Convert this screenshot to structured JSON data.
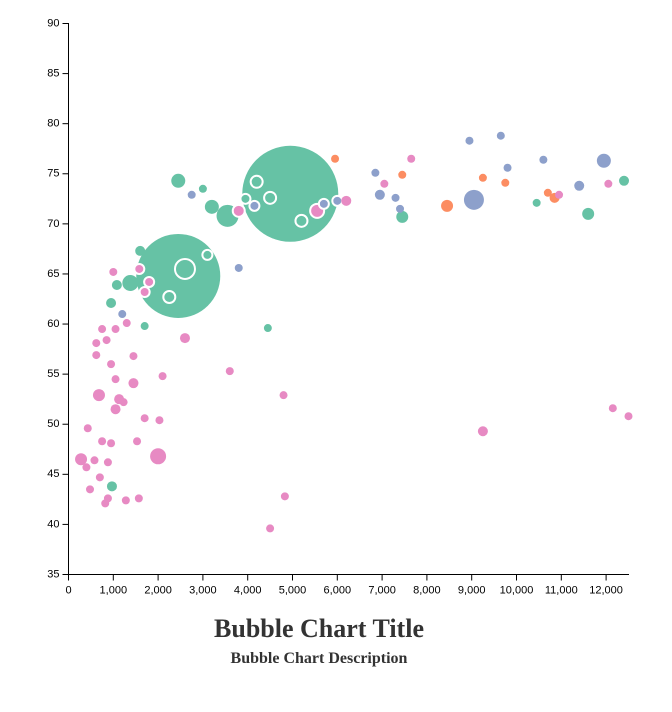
{
  "chart_data": {
    "type": "scatter",
    "title": "Bubble Chart Title",
    "subtitle": "Bubble Chart Description",
    "xlabel": "",
    "ylabel": "",
    "xlim": [
      0,
      12500
    ],
    "ylim": [
      35,
      90
    ],
    "x_ticks": [
      0,
      1000,
      2000,
      3000,
      4000,
      5000,
      6000,
      7000,
      8000,
      9000,
      10000,
      11000,
      12000
    ],
    "x_tick_labels": [
      "0",
      "1,000",
      "2,000",
      "3,000",
      "4,000",
      "5,000",
      "6,000",
      "7,000",
      "8,000",
      "9,000",
      "10,000",
      "11,000",
      "12,000"
    ],
    "y_ticks": [
      35,
      40,
      45,
      50,
      55,
      60,
      65,
      70,
      75,
      80,
      85,
      90
    ],
    "y_tick_labels": [
      "35",
      "40",
      "45",
      "50",
      "55",
      "60",
      "65",
      "70",
      "75",
      "80",
      "85",
      "90"
    ],
    "grid": false,
    "legend": "none",
    "colors": {
      "green": "#66c2a5",
      "orange": "#fc8d62",
      "blue": "#8da0cb",
      "pink": "#e78ac3"
    },
    "points": [
      {
        "x": 4950,
        "y": 73.0,
        "r": 48,
        "color": "green",
        "outline": false
      },
      {
        "x": 2450,
        "y": 64.8,
        "r": 42,
        "color": "green",
        "outline": false
      },
      {
        "x": 2600,
        "y": 65.5,
        "r": 10,
        "color": "green",
        "outline": true
      },
      {
        "x": 2250,
        "y": 62.7,
        "r": 6,
        "color": "green",
        "outline": true
      },
      {
        "x": 3100,
        "y": 66.9,
        "r": 5,
        "color": "green",
        "outline": true
      },
      {
        "x": 4200,
        "y": 74.2,
        "r": 6,
        "color": "green",
        "outline": true
      },
      {
        "x": 4500,
        "y": 72.6,
        "r": 6,
        "color": "green",
        "outline": true
      },
      {
        "x": 4150,
        "y": 71.8,
        "r": 5,
        "color": "blue",
        "outline": true
      },
      {
        "x": 3950,
        "y": 72.5,
        "r": 5,
        "color": "green",
        "outline": true
      },
      {
        "x": 5200,
        "y": 70.3,
        "r": 6,
        "color": "green",
        "outline": true
      },
      {
        "x": 5700,
        "y": 72.0,
        "r": 5,
        "color": "blue",
        "outline": true
      },
      {
        "x": 6000,
        "y": 72.3,
        "r": 5,
        "color": "blue",
        "outline": true
      },
      {
        "x": 5550,
        "y": 71.3,
        "r": 7,
        "color": "pink",
        "outline": true
      },
      {
        "x": 3800,
        "y": 71.3,
        "r": 6,
        "color": "pink",
        "outline": true
      },
      {
        "x": 1580,
        "y": 65.5,
        "r": 5,
        "color": "pink",
        "outline": true
      },
      {
        "x": 1800,
        "y": 64.2,
        "r": 5,
        "color": "pink",
        "outline": true
      },
      {
        "x": 1700,
        "y": 63.2,
        "r": 5,
        "color": "pink",
        "outline": true
      },
      {
        "x": 2450,
        "y": 74.3,
        "r": 7,
        "color": "green",
        "outline": false
      },
      {
        "x": 3000,
        "y": 73.5,
        "r": 4,
        "color": "green",
        "outline": false
      },
      {
        "x": 3200,
        "y": 71.7,
        "r": 7,
        "color": "green",
        "outline": false
      },
      {
        "x": 3550,
        "y": 70.8,
        "r": 11,
        "color": "green",
        "outline": false
      },
      {
        "x": 2750,
        "y": 72.9,
        "r": 4,
        "color": "blue",
        "outline": false
      },
      {
        "x": 6200,
        "y": 72.3,
        "r": 5,
        "color": "pink",
        "outline": false
      },
      {
        "x": 5950,
        "y": 76.5,
        "r": 4,
        "color": "orange",
        "outline": false
      },
      {
        "x": 6850,
        "y": 75.1,
        "r": 4,
        "color": "blue",
        "outline": false
      },
      {
        "x": 6950,
        "y": 72.9,
        "r": 5,
        "color": "blue",
        "outline": false
      },
      {
        "x": 7050,
        "y": 74.0,
        "r": 4,
        "color": "pink",
        "outline": false
      },
      {
        "x": 7300,
        "y": 72.6,
        "r": 4,
        "color": "blue",
        "outline": false
      },
      {
        "x": 7400,
        "y": 71.5,
        "r": 4,
        "color": "blue",
        "outline": false
      },
      {
        "x": 7450,
        "y": 70.7,
        "r": 6,
        "color": "green",
        "outline": false
      },
      {
        "x": 7450,
        "y": 74.9,
        "r": 4,
        "color": "orange",
        "outline": false
      },
      {
        "x": 7650,
        "y": 76.5,
        "r": 4,
        "color": "pink",
        "outline": false
      },
      {
        "x": 8450,
        "y": 71.8,
        "r": 6,
        "color": "orange",
        "outline": false
      },
      {
        "x": 8950,
        "y": 78.3,
        "r": 4,
        "color": "blue",
        "outline": false
      },
      {
        "x": 9050,
        "y": 72.4,
        "r": 10,
        "color": "blue",
        "outline": false
      },
      {
        "x": 9250,
        "y": 74.6,
        "r": 4,
        "color": "orange",
        "outline": false
      },
      {
        "x": 9650,
        "y": 78.8,
        "r": 4,
        "color": "blue",
        "outline": false
      },
      {
        "x": 9750,
        "y": 74.1,
        "r": 4,
        "color": "orange",
        "outline": false
      },
      {
        "x": 9800,
        "y": 75.6,
        "r": 4,
        "color": "blue",
        "outline": false
      },
      {
        "x": 10450,
        "y": 72.1,
        "r": 4,
        "color": "green",
        "outline": false
      },
      {
        "x": 10600,
        "y": 76.4,
        "r": 4,
        "color": "blue",
        "outline": false
      },
      {
        "x": 10700,
        "y": 73.1,
        "r": 4,
        "color": "orange",
        "outline": false
      },
      {
        "x": 10850,
        "y": 72.6,
        "r": 5,
        "color": "orange",
        "outline": false
      },
      {
        "x": 10950,
        "y": 72.9,
        "r": 4,
        "color": "pink",
        "outline": false
      },
      {
        "x": 11400,
        "y": 73.8,
        "r": 5,
        "color": "blue",
        "outline": false
      },
      {
        "x": 11600,
        "y": 71.0,
        "r": 6,
        "color": "green",
        "outline": false
      },
      {
        "x": 11950,
        "y": 76.3,
        "r": 7,
        "color": "blue",
        "outline": false
      },
      {
        "x": 12050,
        "y": 74.0,
        "r": 4,
        "color": "pink",
        "outline": false
      },
      {
        "x": 12400,
        "y": 74.3,
        "r": 5,
        "color": "green",
        "outline": false
      },
      {
        "x": 1600,
        "y": 67.3,
        "r": 5,
        "color": "green",
        "outline": false
      },
      {
        "x": 1380,
        "y": 64.1,
        "r": 8,
        "color": "green",
        "outline": false
      },
      {
        "x": 1080,
        "y": 63.9,
        "r": 5,
        "color": "green",
        "outline": false
      },
      {
        "x": 950,
        "y": 62.1,
        "r": 5,
        "color": "green",
        "outline": false
      },
      {
        "x": 1000,
        "y": 65.2,
        "r": 4,
        "color": "pink",
        "outline": false
      },
      {
        "x": 1200,
        "y": 61.0,
        "r": 4,
        "color": "blue",
        "outline": false
      },
      {
        "x": 1300,
        "y": 60.1,
        "r": 4,
        "color": "pink",
        "outline": false
      },
      {
        "x": 1700,
        "y": 59.8,
        "r": 4,
        "color": "green",
        "outline": false
      },
      {
        "x": 3800,
        "y": 65.6,
        "r": 4,
        "color": "blue",
        "outline": false
      },
      {
        "x": 2600,
        "y": 58.6,
        "r": 5,
        "color": "pink",
        "outline": false
      },
      {
        "x": 4450,
        "y": 59.6,
        "r": 4,
        "color": "green",
        "outline": false
      },
      {
        "x": 750,
        "y": 59.5,
        "r": 4,
        "color": "pink",
        "outline": false
      },
      {
        "x": 1050,
        "y": 59.5,
        "r": 4,
        "color": "pink",
        "outline": false
      },
      {
        "x": 850,
        "y": 58.4,
        "r": 4,
        "color": "pink",
        "outline": false
      },
      {
        "x": 620,
        "y": 58.1,
        "r": 4,
        "color": "pink",
        "outline": false
      },
      {
        "x": 620,
        "y": 56.9,
        "r": 4,
        "color": "pink",
        "outline": false
      },
      {
        "x": 1450,
        "y": 56.8,
        "r": 4,
        "color": "pink",
        "outline": false
      },
      {
        "x": 950,
        "y": 56.0,
        "r": 4,
        "color": "pink",
        "outline": false
      },
      {
        "x": 3600,
        "y": 55.3,
        "r": 4,
        "color": "pink",
        "outline": false
      },
      {
        "x": 2100,
        "y": 54.8,
        "r": 4,
        "color": "pink",
        "outline": false
      },
      {
        "x": 1050,
        "y": 54.5,
        "r": 4,
        "color": "pink",
        "outline": false
      },
      {
        "x": 1450,
        "y": 54.1,
        "r": 5,
        "color": "pink",
        "outline": false
      },
      {
        "x": 680,
        "y": 52.9,
        "r": 6,
        "color": "pink",
        "outline": false
      },
      {
        "x": 4800,
        "y": 52.9,
        "r": 4,
        "color": "pink",
        "outline": false
      },
      {
        "x": 1130,
        "y": 52.5,
        "r": 5,
        "color": "pink",
        "outline": false
      },
      {
        "x": 1230,
        "y": 52.2,
        "r": 4,
        "color": "pink",
        "outline": false
      },
      {
        "x": 1050,
        "y": 51.5,
        "r": 5,
        "color": "pink",
        "outline": false
      },
      {
        "x": 1700,
        "y": 50.6,
        "r": 4,
        "color": "pink",
        "outline": false
      },
      {
        "x": 2030,
        "y": 50.4,
        "r": 4,
        "color": "pink",
        "outline": false
      },
      {
        "x": 12150,
        "y": 51.6,
        "r": 4,
        "color": "pink",
        "outline": false
      },
      {
        "x": 12500,
        "y": 50.8,
        "r": 4,
        "color": "pink",
        "outline": false
      },
      {
        "x": 9250,
        "y": 49.3,
        "r": 5,
        "color": "pink",
        "outline": false
      },
      {
        "x": 430,
        "y": 49.6,
        "r": 4,
        "color": "pink",
        "outline": false
      },
      {
        "x": 750,
        "y": 48.3,
        "r": 4,
        "color": "pink",
        "outline": false
      },
      {
        "x": 950,
        "y": 48.1,
        "r": 4,
        "color": "pink",
        "outline": false
      },
      {
        "x": 1530,
        "y": 48.3,
        "r": 4,
        "color": "pink",
        "outline": false
      },
      {
        "x": 2000,
        "y": 46.8,
        "r": 8,
        "color": "pink",
        "outline": false
      },
      {
        "x": 280,
        "y": 46.5,
        "r": 6,
        "color": "pink",
        "outline": false
      },
      {
        "x": 580,
        "y": 46.4,
        "r": 4,
        "color": "pink",
        "outline": false
      },
      {
        "x": 880,
        "y": 46.2,
        "r": 4,
        "color": "pink",
        "outline": false
      },
      {
        "x": 400,
        "y": 45.7,
        "r": 4,
        "color": "pink",
        "outline": false
      },
      {
        "x": 700,
        "y": 44.7,
        "r": 4,
        "color": "pink",
        "outline": false
      },
      {
        "x": 480,
        "y": 43.5,
        "r": 4,
        "color": "pink",
        "outline": false
      },
      {
        "x": 970,
        "y": 43.8,
        "r": 5,
        "color": "green",
        "outline": false
      },
      {
        "x": 880,
        "y": 42.6,
        "r": 4,
        "color": "pink",
        "outline": false
      },
      {
        "x": 820,
        "y": 42.1,
        "r": 4,
        "color": "pink",
        "outline": false
      },
      {
        "x": 1280,
        "y": 42.4,
        "r": 4,
        "color": "pink",
        "outline": false
      },
      {
        "x": 1570,
        "y": 42.6,
        "r": 4,
        "color": "pink",
        "outline": false
      },
      {
        "x": 4830,
        "y": 42.8,
        "r": 4,
        "color": "pink",
        "outline": false
      },
      {
        "x": 4500,
        "y": 39.6,
        "r": 4,
        "color": "pink",
        "outline": false
      }
    ]
  }
}
